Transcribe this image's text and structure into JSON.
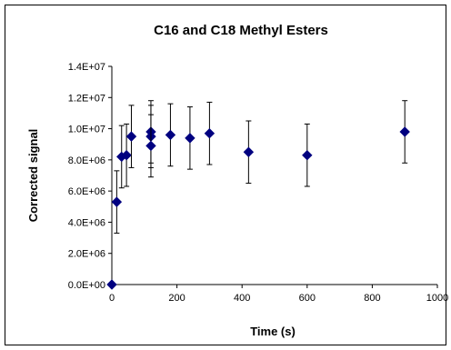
{
  "chart_data": {
    "type": "scatter",
    "title": "C16 and C18 Methyl Esters",
    "xlabel": "Time (s)",
    "ylabel": "Corrected signal",
    "xlim": [
      0,
      1000
    ],
    "ylim": [
      0,
      14000000
    ],
    "x_ticks": [
      "0",
      "200",
      "400",
      "600",
      "800",
      "1000"
    ],
    "y_ticks": [
      "0.0E+00",
      "2.0E+06",
      "4.0E+06",
      "6.0E+06",
      "8.0E+06",
      "1.0E+07",
      "1.2E+07",
      "1.4E+07"
    ],
    "x_tick_values": [
      0,
      200,
      400,
      600,
      800,
      1000
    ],
    "y_tick_values": [
      0,
      2000000,
      4000000,
      6000000,
      8000000,
      10000000,
      12000000,
      14000000
    ],
    "grid": false,
    "legend": "none",
    "marker": "diamond",
    "marker_color": "#000080",
    "error_bar_color": "#000000",
    "points": [
      {
        "x": 0,
        "y": 0,
        "err": 0
      },
      {
        "x": 15,
        "y": 5300000,
        "err": 2000000
      },
      {
        "x": 30,
        "y": 8200000,
        "err": 2000000
      },
      {
        "x": 45,
        "y": 8300000,
        "err": 2000000
      },
      {
        "x": 60,
        "y": 9500000,
        "err": 2000000
      },
      {
        "x": 120,
        "y": 9800000,
        "err": 2000000
      },
      {
        "x": 120,
        "y": 9500000,
        "err": 2000000
      },
      {
        "x": 120,
        "y": 8900000,
        "err": 2000000
      },
      {
        "x": 180,
        "y": 9600000,
        "err": 2000000
      },
      {
        "x": 240,
        "y": 9400000,
        "err": 2000000
      },
      {
        "x": 300,
        "y": 9700000,
        "err": 2000000
      },
      {
        "x": 420,
        "y": 8500000,
        "err": 2000000
      },
      {
        "x": 600,
        "y": 8300000,
        "err": 2000000
      },
      {
        "x": 900,
        "y": 9800000,
        "err": 2000000
      }
    ]
  }
}
